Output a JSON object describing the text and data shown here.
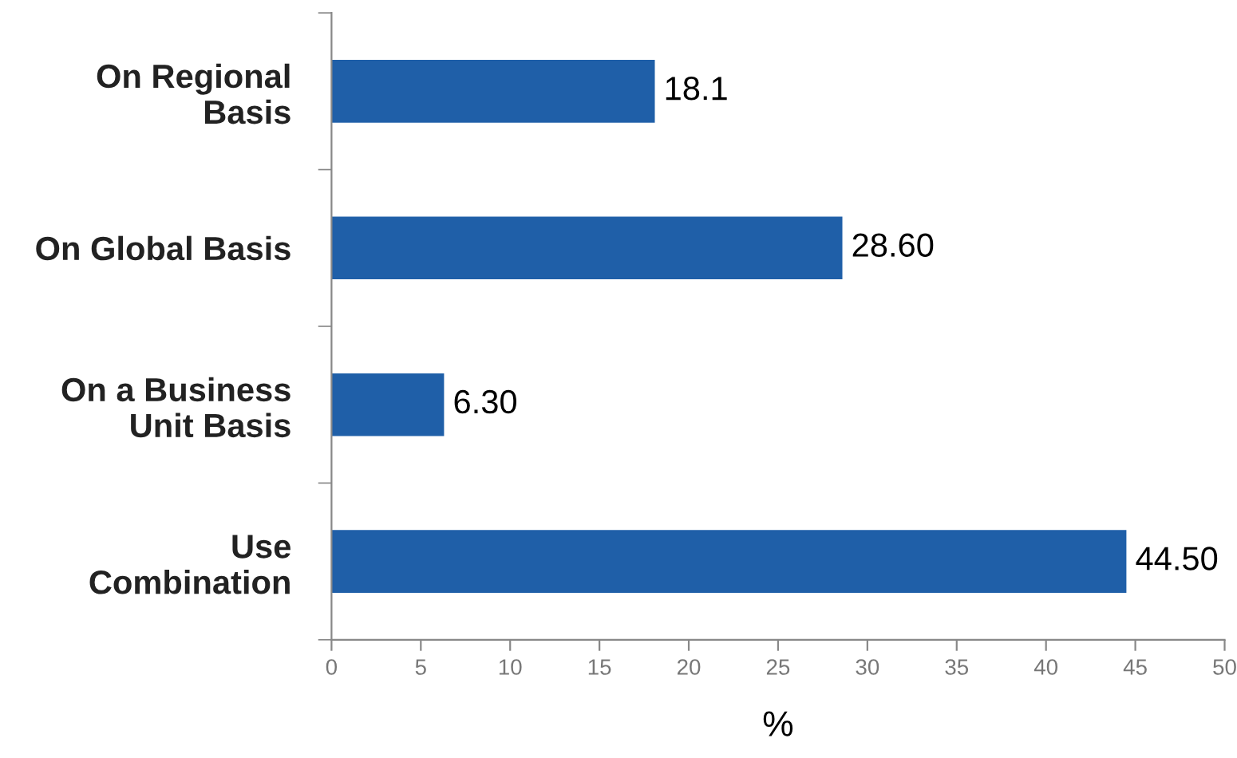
{
  "chart_data": {
    "type": "bar",
    "orientation": "horizontal",
    "categories": [
      "On Regional\nBasis",
      "On Global Basis",
      "On a Business\nUnit Basis",
      "Use\nCombination"
    ],
    "values": [
      18.1,
      28.6,
      6.3,
      44.5
    ],
    "value_labels": [
      "18.1",
      "28.60",
      "6.30",
      "44.50"
    ],
    "color": "#1f5fa8",
    "xlabel": "%",
    "xlim": [
      0,
      50
    ],
    "xticks": [
      0,
      5,
      10,
      15,
      20,
      25,
      30,
      35,
      40,
      45,
      50
    ],
    "grid": false,
    "legend": false
  }
}
